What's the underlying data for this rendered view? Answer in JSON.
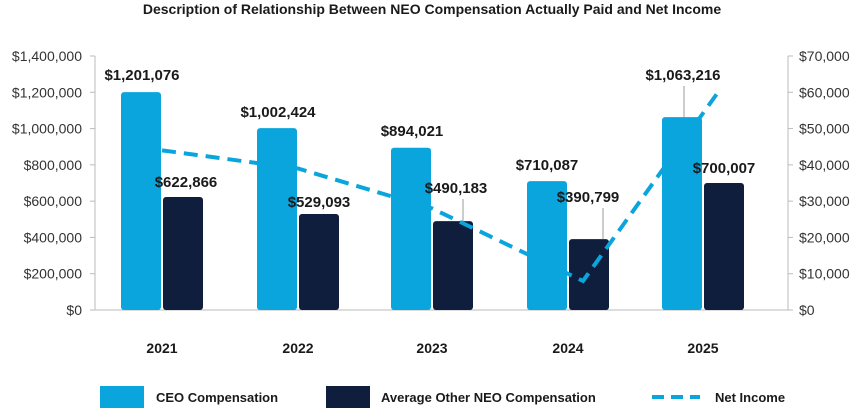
{
  "chart_data": {
    "type": "bar",
    "title": "Description of Relationship Between NEO Compensation Actually Paid and Net Income",
    "categories": [
      "2021",
      "2022",
      "2023",
      "2024",
      "2025"
    ],
    "series": [
      {
        "name": "CEO Compensation",
        "axis": "left",
        "color": "#0AA5DD",
        "values": [
          1201076,
          1002424,
          894021,
          710087,
          1063216
        ],
        "labels": [
          "$1,201,076",
          "$1,002,424",
          "$894,021",
          "$710,087",
          "$1,063,216"
        ]
      },
      {
        "name": "Average Other NEO Compensation",
        "axis": "left",
        "color": "#0F1E3C",
        "values": [
          622866,
          529093,
          490183,
          390799,
          700007
        ],
        "labels": [
          "$622,866",
          "$529,093",
          "$490,183",
          "$390,799",
          "$700,007"
        ]
      },
      {
        "name": "Net Income",
        "type": "line",
        "style": "dashed",
        "axis": "right",
        "color": "#0AA5DD",
        "values": [
          44000,
          39000,
          28000,
          8000,
          60000
        ]
      }
    ],
    "left_axis": {
      "ylim": [
        0,
        1400000
      ],
      "ticks": [
        "$0",
        "$200,000",
        "$400,000",
        "$600,000",
        "$800,000",
        "$1,000,000",
        "$1,200,000",
        "$1,400,000"
      ]
    },
    "right_axis": {
      "ylim": [
        0,
        70000
      ],
      "ticks": [
        "$0",
        "$10,000",
        "$20,000",
        "$30,000",
        "$40,000",
        "$50,000",
        "$60,000",
        "$70,000"
      ]
    },
    "legend": {
      "position": "bottom",
      "items": [
        "CEO Compensation",
        "Average Other NEO Compensation",
        "Net Income"
      ]
    }
  }
}
